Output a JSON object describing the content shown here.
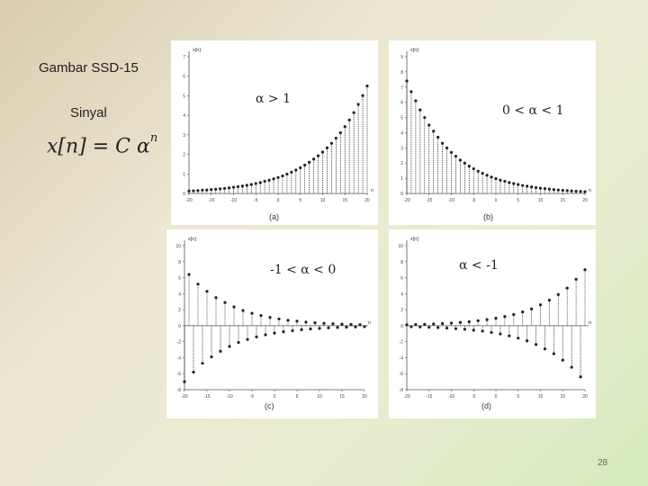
{
  "slide": {
    "title": "Gambar SSD-15",
    "subtitle": "Sinyal",
    "formula_main": "x[n] = C α",
    "formula_exp": "n",
    "page_number": "28"
  },
  "chart_data": [
    {
      "type": "scatter",
      "caption": "(a)",
      "condition": "α > 1",
      "ylabel": "x[n]",
      "xlabel": "n",
      "xlim": [
        -20,
        20
      ],
      "ylim": [
        0,
        7
      ],
      "n": [
        -20,
        -19,
        -18,
        -17,
        -16,
        -15,
        -14,
        -13,
        -12,
        -11,
        -10,
        -9,
        -8,
        -7,
        -6,
        -5,
        -4,
        -3,
        -2,
        -1,
        0,
        1,
        2,
        3,
        4,
        5,
        6,
        7,
        8,
        9,
        10,
        11,
        12,
        13,
        14,
        15,
        16,
        17,
        18,
        19,
        20
      ],
      "values": [
        0.13,
        0.14,
        0.15,
        0.17,
        0.18,
        0.2,
        0.22,
        0.24,
        0.26,
        0.29,
        0.32,
        0.35,
        0.38,
        0.42,
        0.46,
        0.51,
        0.56,
        0.62,
        0.68,
        0.75,
        0.82,
        0.9,
        0.99,
        1.09,
        1.2,
        1.32,
        1.45,
        1.6,
        1.76,
        1.93,
        2.12,
        2.34,
        2.57,
        2.83,
        3.11,
        3.42,
        3.76,
        4.14,
        4.56,
        5.01,
        5.5
      ],
      "yticks": [
        "0",
        "1",
        "2",
        "3",
        "4",
        "5",
        "6",
        "7"
      ],
      "xticks": [
        "-20",
        "-15",
        "-10",
        "-5",
        "0",
        "5",
        "10",
        "15",
        "20"
      ]
    },
    {
      "type": "scatter",
      "caption": "(b)",
      "condition": "0 < α < 1",
      "ylabel": "x[n]",
      "xlabel": "n",
      "xlim": [
        -20,
        20
      ],
      "ylim": [
        0,
        9
      ],
      "n": [
        -20,
        -19,
        -18,
        -17,
        -16,
        -15,
        -14,
        -13,
        -12,
        -11,
        -10,
        -9,
        -8,
        -7,
        -6,
        -5,
        -4,
        -3,
        -2,
        -1,
        0,
        1,
        2,
        3,
        4,
        5,
        6,
        7,
        8,
        9,
        10,
        11,
        12,
        13,
        14,
        15,
        16,
        17,
        18,
        19,
        20
      ],
      "values": [
        7.4,
        6.7,
        6.1,
        5.5,
        5.0,
        4.5,
        4.1,
        3.7,
        3.3,
        3.0,
        2.7,
        2.45,
        2.2,
        2.0,
        1.8,
        1.63,
        1.47,
        1.33,
        1.2,
        1.08,
        0.98,
        0.88,
        0.8,
        0.72,
        0.65,
        0.59,
        0.53,
        0.48,
        0.43,
        0.39,
        0.35,
        0.32,
        0.29,
        0.26,
        0.23,
        0.21,
        0.19,
        0.17,
        0.15,
        0.14,
        0.12
      ],
      "yticks": [
        "0",
        "1",
        "2",
        "3",
        "4",
        "5",
        "6",
        "7",
        "8",
        "9"
      ],
      "xticks": [
        "-20",
        "-15",
        "-10",
        "-5",
        "0",
        "5",
        "10",
        "15",
        "20"
      ]
    },
    {
      "type": "scatter",
      "caption": "(c)",
      "condition": "-1 < α < 0",
      "ylabel": "x[n]",
      "xlabel": "n",
      "xlim": [
        -20,
        20
      ],
      "ylim": [
        -8,
        10
      ],
      "n": [
        -20,
        -19,
        -18,
        -17,
        -16,
        -15,
        -14,
        -13,
        -12,
        -11,
        -10,
        -9,
        -8,
        -7,
        -6,
        -5,
        -4,
        -3,
        -2,
        -1,
        0,
        1,
        2,
        3,
        4,
        5,
        6,
        7,
        8,
        9,
        10,
        11,
        12,
        13,
        14,
        15,
        16,
        17,
        18,
        19,
        20
      ],
      "values": [
        -7,
        6.4,
        -5.8,
        5.2,
        -4.7,
        4.3,
        -3.9,
        3.5,
        -3.2,
        2.9,
        -2.6,
        2.35,
        -2.1,
        1.9,
        -1.72,
        1.55,
        -1.4,
        1.27,
        -1.14,
        1.03,
        -0.93,
        0.84,
        -0.76,
        0.68,
        -0.62,
        0.56,
        -0.5,
        0.45,
        -0.41,
        0.37,
        -0.33,
        0.3,
        -0.27,
        0.24,
        -0.22,
        0.2,
        -0.18,
        0.16,
        -0.15,
        0.13,
        -0.12
      ],
      "yticks": [
        "-8",
        "-6",
        "-4",
        "-2",
        "0",
        "2",
        "4",
        "6",
        "8",
        "10"
      ],
      "xticks": [
        "-20",
        "-15",
        "-10",
        "-5",
        "0",
        "5",
        "10",
        "15",
        "20"
      ]
    },
    {
      "type": "scatter",
      "caption": "(d)",
      "condition": "α < -1",
      "ylabel": "x[n]",
      "xlabel": "n",
      "xlim": [
        -20,
        20
      ],
      "ylim": [
        -8,
        10
      ],
      "n": [
        -20,
        -19,
        -18,
        -17,
        -16,
        -15,
        -14,
        -13,
        -12,
        -11,
        -10,
        -9,
        -8,
        -7,
        -6,
        -5,
        -4,
        -3,
        -2,
        -1,
        0,
        1,
        2,
        3,
        4,
        5,
        6,
        7,
        8,
        9,
        10,
        11,
        12,
        13,
        14,
        15,
        16,
        17,
        18,
        19,
        20
      ],
      "values": [
        0.12,
        -0.13,
        0.15,
        -0.16,
        0.18,
        -0.2,
        0.22,
        -0.24,
        0.27,
        -0.3,
        0.33,
        -0.37,
        0.41,
        -0.45,
        0.5,
        -0.56,
        0.62,
        -0.68,
        0.76,
        -0.84,
        0.93,
        -1.03,
        1.14,
        -1.27,
        1.4,
        -1.55,
        1.72,
        -1.9,
        2.1,
        -2.35,
        2.6,
        -2.9,
        3.2,
        -3.5,
        3.9,
        -4.3,
        4.7,
        -5.2,
        5.8,
        -6.4,
        7.0
      ],
      "yticks": [
        "-8",
        "-6",
        "-4",
        "-2",
        "0",
        "2",
        "4",
        "6",
        "8",
        "10"
      ],
      "xticks": [
        "-20",
        "-15",
        "-10",
        "-5",
        "0",
        "5",
        "10",
        "15",
        "20"
      ]
    }
  ]
}
